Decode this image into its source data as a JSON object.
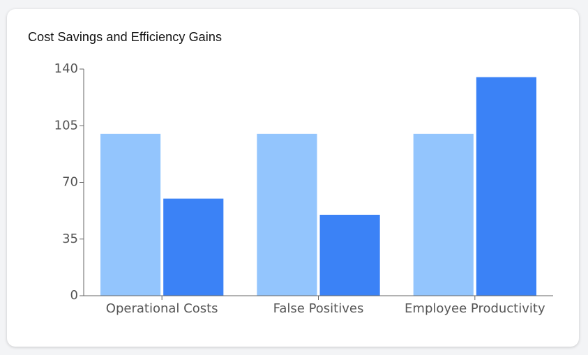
{
  "card": {
    "title": "Cost Savings and Efficiency Gains"
  },
  "colors": {
    "before": "#93c5fd",
    "after": "#3b82f6",
    "axis": "#666666"
  },
  "chart_data": {
    "type": "bar",
    "title": "Cost Savings and Efficiency Gains",
    "categories": [
      "Operational Costs",
      "False Positives",
      "Employee Productivity"
    ],
    "series": [
      {
        "values": [
          100,
          100,
          100
        ],
        "color": "#93c5fd"
      },
      {
        "values": [
          60,
          50,
          135
        ],
        "color": "#3b82f6"
      }
    ],
    "yticks": [
      0,
      35,
      70,
      105,
      140
    ],
    "ylim": [
      0,
      140
    ],
    "grid": false,
    "legend": "none"
  }
}
